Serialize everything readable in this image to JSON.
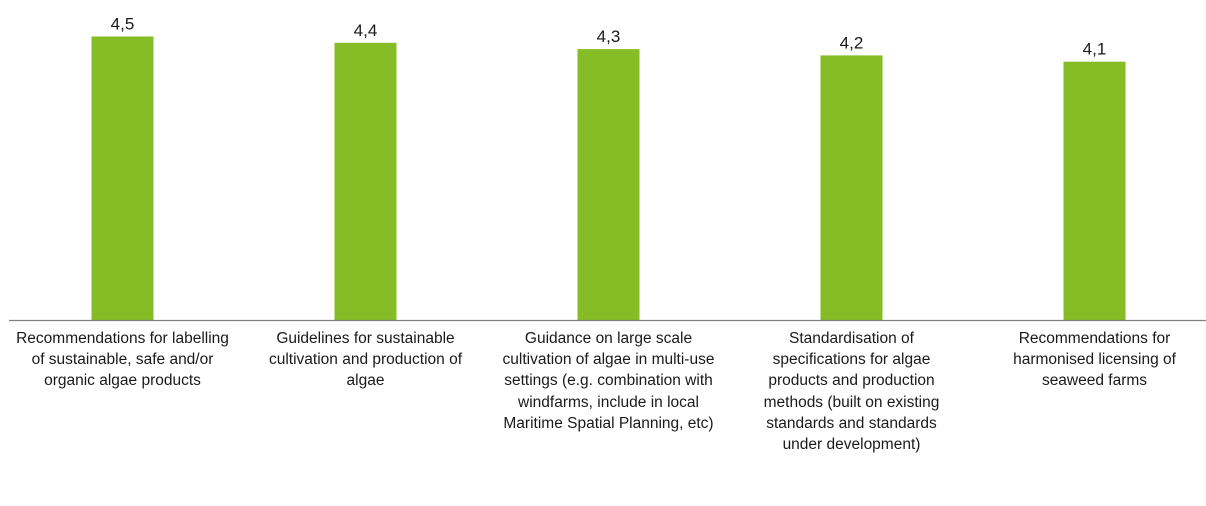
{
  "chart_data": {
    "type": "bar",
    "categories": [
      "Recommendations for labelling of sustainable, safe and/or organic algae products",
      "Guidelines for sustainable cultivation and production of algae",
      "Guidance on large scale cultivation of algae in multi-use settings (e.g. combination with windfarms, include in local Maritime Spatial Planning, etc)",
      "Standardisation of specifications for algae products and production methods (built on existing standards and standards under development)",
      "Recommendations for harmonised licensing of seaweed farms"
    ],
    "values": [
      4.5,
      4.4,
      4.3,
      4.2,
      4.1
    ],
    "value_labels": [
      "4,5",
      "4,4",
      "4,3",
      "4,2",
      "4,1"
    ],
    "ylim": [
      0,
      5
    ],
    "grid": false,
    "legend": "none",
    "bar_color": "#86bc25",
    "axis_color": "#7f7f7f"
  }
}
